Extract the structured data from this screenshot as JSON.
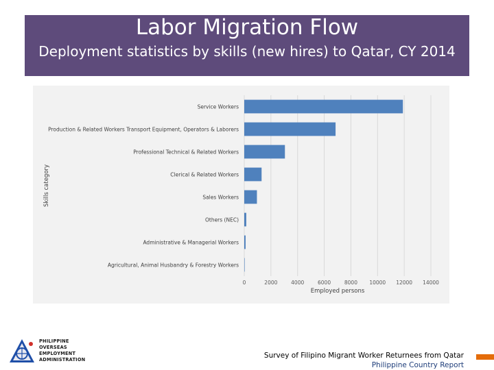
{
  "header": {
    "title": "Labor Migration Flow",
    "subtitle": "Deployment statistics by skills (new hires) to Qatar, CY 2014"
  },
  "chart_data": {
    "type": "bar",
    "orientation": "horizontal",
    "xlabel": "Employed persons",
    "ylabel": "Skills category",
    "xlim": [
      0,
      14000
    ],
    "xticks": [
      "0",
      "2000",
      "4000",
      "6000",
      "8000",
      "10000",
      "12000",
      "14000"
    ],
    "grid": true,
    "bar_color": "#4f81bd",
    "categories": [
      "Service Workers",
      "Production & Related Workers Transport Equipment, Operators & Laborers",
      "Professional Technical & Related Workers",
      "Clerical & Related Workers",
      "Sales Workers",
      "Others (NEC)",
      "Administrative & Managerial Workers",
      "Agricultural, Animal Husbandry & Forestry Workers"
    ],
    "values": [
      11900,
      6850,
      3050,
      1300,
      950,
      150,
      100,
      10
    ]
  },
  "logo": {
    "lines": [
      "PHILIPPINE",
      "OVERSEAS",
      "EMPLOYMENT",
      "ADMINISTRATION"
    ]
  },
  "footer": {
    "line1": "Survey of Filipino Migrant Worker Returnees from Qatar",
    "line2": "Philippine Country Report"
  }
}
